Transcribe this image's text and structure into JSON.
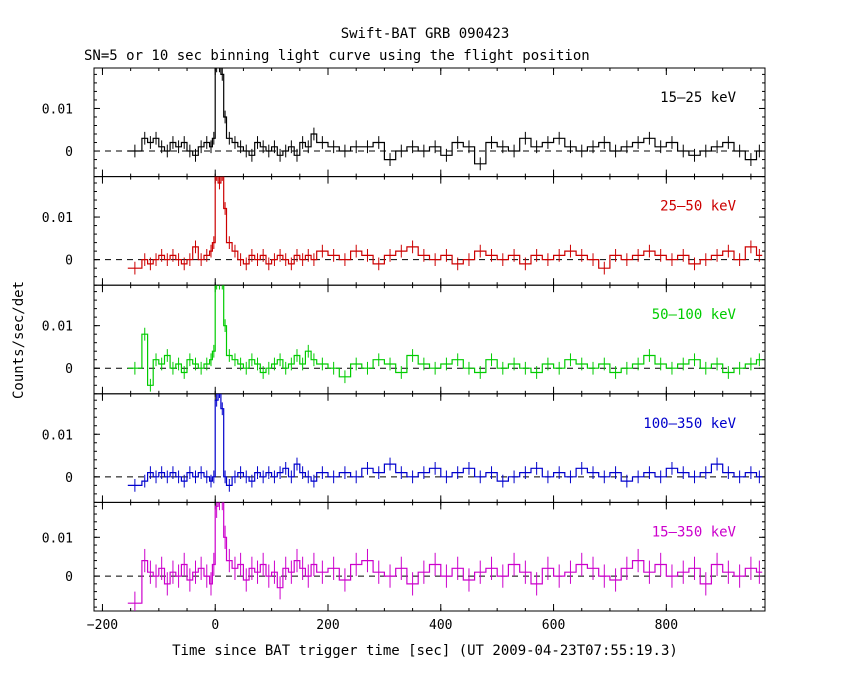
{
  "chart_data": {
    "type": "line",
    "title": "Swift-BAT GRB 090423",
    "subtitle": "SN=5 or 10 sec binning light curve using the flight position",
    "xlabel": "Time since BAT trigger time [sec] (UT 2009-04-23T07:55:19.3)",
    "ylabel": "Counts/sec/det",
    "xlim": [
      -215,
      975
    ],
    "x_ticks": [
      "−200",
      "0",
      "200",
      "400",
      "600",
      "800"
    ],
    "x_tick_values": [
      -200,
      0,
      200,
      400,
      600,
      800
    ],
    "y_ticks": [
      "0",
      "0.01"
    ],
    "y_tick_values": [
      0,
      0.01
    ],
    "panels": [
      {
        "name": "15–25 keV",
        "color": "#000000",
        "ylim": [
          -0.006,
          0.0195
        ],
        "x": [
          -155,
          -130,
          -120,
          -110,
          -100,
          -90,
          -80,
          -70,
          -60,
          -50,
          -40,
          -30,
          -20,
          -10,
          -5,
          0,
          5,
          10,
          15,
          20,
          30,
          40,
          50,
          60,
          70,
          80,
          90,
          100,
          110,
          120,
          130,
          140,
          150,
          160,
          170,
          180,
          200,
          220,
          240,
          260,
          280,
          300,
          320,
          340,
          360,
          380,
          400,
          420,
          440,
          460,
          480,
          500,
          520,
          540,
          560,
          580,
          600,
          620,
          640,
          660,
          680,
          700,
          720,
          740,
          760,
          780,
          800,
          820,
          840,
          860,
          880,
          900,
          920,
          940,
          960
        ],
        "values": [
          0,
          0.003,
          0.002,
          0.003,
          0.001,
          0.0,
          0.002,
          0.001,
          0.002,
          0.0,
          -0.001,
          0.001,
          0.002,
          0.001,
          0.003,
          0.02,
          0.02,
          0.018,
          0.008,
          0.003,
          0.002,
          0.001,
          0.0,
          -0.001,
          0.002,
          0.001,
          0.0,
          0.001,
          -0.001,
          0.0,
          0.001,
          -0.001,
          0.002,
          0.001,
          0.004,
          0.002,
          0.001,
          0.0,
          0.001,
          0.001,
          0.002,
          -0.002,
          0.0,
          0.001,
          0.0,
          0.001,
          -0.001,
          0.002,
          0.001,
          -0.003,
          0.002,
          0.001,
          0.0,
          0.003,
          0.001,
          0.002,
          0.003,
          0.001,
          0.0,
          0.001,
          0.002,
          0.0,
          0.001,
          0.002,
          0.003,
          0.001,
          0.002,
          0.0,
          -0.001,
          0.0,
          0.001,
          0.002,
          0.0,
          -0.002,
          0.0
        ],
        "errors": 0.0015
      },
      {
        "name": "25–50 keV",
        "color": "#cc0000",
        "ylim": [
          -0.006,
          0.0195
        ],
        "x": [
          -155,
          -130,
          -120,
          -110,
          -100,
          -90,
          -80,
          -70,
          -60,
          -50,
          -40,
          -30,
          -20,
          -10,
          -5,
          0,
          5,
          10,
          15,
          20,
          30,
          40,
          50,
          60,
          70,
          80,
          90,
          100,
          110,
          120,
          130,
          140,
          150,
          160,
          170,
          180,
          200,
          220,
          240,
          260,
          280,
          300,
          320,
          340,
          360,
          380,
          400,
          420,
          440,
          460,
          480,
          500,
          520,
          540,
          560,
          580,
          600,
          620,
          640,
          660,
          680,
          700,
          720,
          740,
          760,
          780,
          800,
          820,
          840,
          860,
          880,
          900,
          920,
          940,
          960
        ],
        "values": [
          -0.002,
          0.0,
          -0.001,
          0.0,
          0.001,
          0.0,
          0.001,
          0.0,
          -0.001,
          0.0,
          0.003,
          0.0,
          0.001,
          0.002,
          0.004,
          0.02,
          0.018,
          0.02,
          0.012,
          0.004,
          0.002,
          0.0,
          -0.001,
          0.001,
          0.0,
          0.001,
          -0.001,
          0.0,
          0.001,
          0.0,
          -0.001,
          0.001,
          0.0,
          0.001,
          0.0,
          0.002,
          0.001,
          0.0,
          0.002,
          0.001,
          -0.001,
          0.001,
          0.002,
          0.003,
          0.001,
          0.0,
          0.001,
          -0.001,
          0.0,
          0.002,
          0.001,
          0.0,
          0.001,
          -0.001,
          0.001,
          0.0,
          0.001,
          0.002,
          0.001,
          0.0,
          -0.002,
          0.001,
          0.0,
          0.001,
          0.002,
          0.001,
          0.0,
          0.001,
          -0.001,
          0.0,
          0.001,
          0.002,
          0.0,
          0.003,
          0.001
        ],
        "errors": 0.0015
      },
      {
        "name": "50–100 keV",
        "color": "#00cc00",
        "ylim": [
          -0.006,
          0.0195
        ],
        "x": [
          -155,
          -130,
          -120,
          -110,
          -100,
          -90,
          -80,
          -70,
          -60,
          -50,
          -40,
          -30,
          -20,
          -10,
          -5,
          0,
          5,
          10,
          15,
          20,
          30,
          40,
          50,
          60,
          70,
          80,
          90,
          100,
          110,
          120,
          130,
          140,
          150,
          160,
          170,
          180,
          200,
          220,
          240,
          260,
          280,
          300,
          320,
          340,
          360,
          380,
          400,
          420,
          440,
          460,
          480,
          500,
          520,
          540,
          560,
          580,
          600,
          620,
          640,
          660,
          680,
          700,
          720,
          740,
          760,
          780,
          800,
          820,
          840,
          860,
          880,
          900,
          920,
          940,
          960
        ],
        "values": [
          0,
          0.008,
          -0.004,
          0.002,
          0.001,
          0.003,
          0.0,
          0.001,
          -0.001,
          0.002,
          0.001,
          0.0,
          0.001,
          0.002,
          0.004,
          0.02,
          0.02,
          0.02,
          0.01,
          0.003,
          0.002,
          0.001,
          0.0,
          0.002,
          0.001,
          -0.001,
          0.0,
          0.001,
          0.002,
          0.0,
          0.001,
          0.003,
          0.001,
          0.004,
          0.002,
          0.001,
          0.0,
          -0.002,
          0.001,
          0.0,
          0.002,
          0.001,
          -0.001,
          0.003,
          0.001,
          0.0,
          0.001,
          0.002,
          0.0,
          -0.001,
          0.002,
          0.0,
          0.001,
          0.0,
          -0.001,
          0.001,
          0.0,
          0.002,
          0.001,
          0.0,
          0.001,
          -0.001,
          0.0,
          0.001,
          0.003,
          0.001,
          0.0,
          0.001,
          0.002,
          0.0,
          0.001,
          -0.001,
          0.0,
          0.001,
          0.002
        ],
        "errors": 0.0015
      },
      {
        "name": "100–350 keV",
        "color": "#0000cc",
        "ylim": [
          -0.006,
          0.0195
        ],
        "x": [
          -155,
          -130,
          -120,
          -110,
          -100,
          -90,
          -80,
          -70,
          -60,
          -50,
          -40,
          -30,
          -20,
          -10,
          -5,
          0,
          5,
          10,
          15,
          20,
          30,
          40,
          50,
          60,
          70,
          80,
          90,
          100,
          110,
          120,
          130,
          140,
          150,
          160,
          170,
          180,
          200,
          220,
          240,
          260,
          280,
          300,
          320,
          340,
          360,
          380,
          400,
          420,
          440,
          460,
          480,
          500,
          520,
          540,
          560,
          580,
          600,
          620,
          640,
          660,
          680,
          700,
          720,
          740,
          760,
          780,
          800,
          820,
          840,
          860,
          880,
          900,
          920,
          940,
          960
        ],
        "values": [
          -0.002,
          -0.001,
          0.001,
          0.0,
          0.001,
          0.0,
          0.001,
          0.0,
          -0.001,
          0.001,
          0.0,
          0.001,
          0.0,
          -0.001,
          0.0,
          0.018,
          0.02,
          0.016,
          0.0,
          -0.002,
          0.0,
          0.001,
          0.0,
          -0.001,
          0.001,
          0.0,
          0.001,
          0.0,
          0.001,
          0.002,
          0.0,
          0.003,
          0.001,
          0.0,
          -0.001,
          0.001,
          0.0,
          0.001,
          0.0,
          0.002,
          0.001,
          0.003,
          0.001,
          0.0,
          0.001,
          0.002,
          0.0,
          0.001,
          0.002,
          0.0,
          0.001,
          -0.001,
          0.0,
          0.001,
          0.002,
          0.0,
          0.001,
          0.0,
          0.002,
          0.001,
          0.0,
          0.001,
          -0.001,
          0.0,
          0.001,
          0.0,
          0.002,
          0.001,
          0.0,
          0.001,
          0.003,
          0.001,
          0.0,
          0.001,
          0.0
        ],
        "errors": 0.0015
      },
      {
        "name": "15–350 keV",
        "color": "#cc00cc",
        "ylim": [
          -0.009,
          0.019
        ],
        "x": [
          -155,
          -130,
          -120,
          -110,
          -100,
          -90,
          -80,
          -70,
          -60,
          -50,
          -40,
          -30,
          -20,
          -10,
          -5,
          0,
          5,
          10,
          15,
          20,
          30,
          40,
          50,
          60,
          70,
          80,
          90,
          100,
          110,
          120,
          130,
          140,
          150,
          160,
          170,
          180,
          200,
          220,
          240,
          260,
          280,
          300,
          320,
          340,
          360,
          380,
          400,
          420,
          440,
          460,
          480,
          500,
          520,
          540,
          560,
          580,
          600,
          620,
          640,
          660,
          680,
          700,
          720,
          740,
          760,
          780,
          800,
          820,
          840,
          860,
          880,
          900,
          920,
          940,
          960
        ],
        "values": [
          -0.007,
          0.004,
          0.001,
          0.0,
          0.002,
          -0.002,
          0.001,
          0.0,
          0.003,
          -0.001,
          0.001,
          0.002,
          0.0,
          -0.002,
          0.003,
          0.018,
          0.02,
          0.02,
          0.01,
          0.004,
          0.002,
          0.003,
          -0.001,
          0.002,
          0.001,
          0.003,
          0.0,
          0.001,
          -0.003,
          0.002,
          0.001,
          0.004,
          0.002,
          0.0,
          0.003,
          0.001,
          0.002,
          -0.001,
          0.003,
          0.004,
          0.001,
          0.0,
          0.002,
          -0.002,
          0.001,
          0.003,
          0.0,
          0.002,
          -0.001,
          0.001,
          0.002,
          0.0,
          0.003,
          0.001,
          -0.002,
          0.002,
          0.0,
          0.001,
          0.003,
          0.002,
          0.0,
          -0.001,
          0.002,
          0.004,
          0.001,
          0.003,
          0.0,
          0.001,
          0.002,
          -0.002,
          0.003,
          0.001,
          0.0,
          0.002,
          0.001
        ],
        "errors": 0.003
      }
    ]
  }
}
